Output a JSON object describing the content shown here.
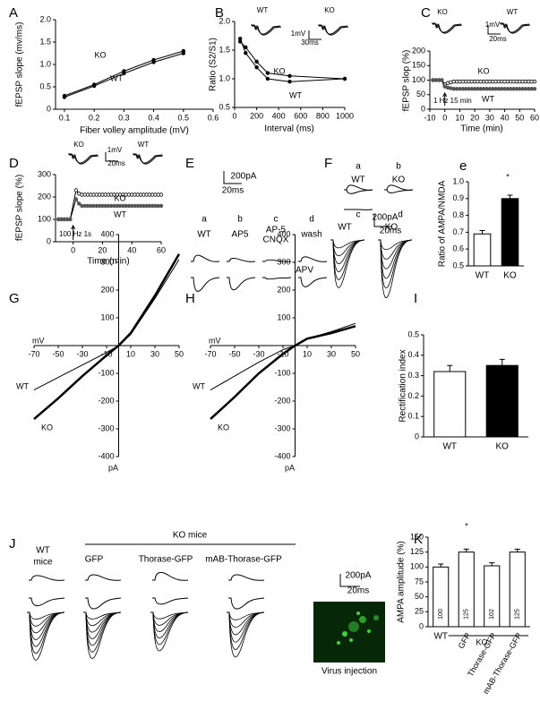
{
  "chart_data": [
    {
      "type": "line",
      "label": "A",
      "xlabel": "Fiber volley amplitude (mV)",
      "ylabel": "fEPSP slope (mv/ms)",
      "xlim": [
        0.07,
        0.6
      ],
      "xticks": [
        0.1,
        0.2,
        0.3,
        0.4,
        0.5,
        0.6
      ],
      "ylim": [
        0,
        2.0
      ],
      "yticks": [
        0,
        0.5,
        {
          "value": 1,
          "label": "1.0"
        },
        1.5,
        {
          "value": 2,
          "label": "2.0"
        }
      ],
      "x": [
        0.1,
        0.2,
        0.3,
        0.4,
        0.5
      ],
      "markers": true,
      "series": [
        {
          "name": "KO",
          "color": "#000000",
          "values": [
            0.3,
            0.55,
            0.85,
            1.1,
            1.3
          ]
        },
        {
          "name": "WT",
          "color": "#000000",
          "values": [
            0.27,
            0.52,
            0.8,
            1.05,
            1.25
          ]
        }
      ]
    },
    {
      "type": "line",
      "label": "B",
      "xlabel": "Interval (ms)",
      "ylabel": "Ratio (S2/S1)",
      "xlim": [
        0,
        1000
      ],
      "xticks": [
        0,
        200,
        400,
        600,
        800,
        1000
      ],
      "ylim": [
        0.5,
        2.0
      ],
      "yticks": [
        0.5,
        {
          "value": 1,
          "label": "1.0"
        },
        1.5,
        {
          "value": 2,
          "label": "2.0"
        }
      ],
      "x": [
        50,
        100,
        200,
        300,
        500,
        1000
      ],
      "markers": true,
      "series": [
        {
          "name": "KO",
          "color": "#000000",
          "values": [
            1.65,
            1.55,
            1.3,
            1.1,
            1.05,
            1.0
          ]
        },
        {
          "name": "WT",
          "color": "#000000",
          "values": [
            1.7,
            1.45,
            1.2,
            1.0,
            0.95,
            1.0
          ]
        }
      ],
      "annotations": [
        "WT",
        "KO",
        "1mV",
        "30ms"
      ]
    },
    {
      "type": "line",
      "label": "C",
      "xlabel": "Time (min)",
      "ylabel": "fEPSP slop (%)",
      "xlim": [
        -10,
        60
      ],
      "xticks": [
        -10,
        0,
        10,
        20,
        30,
        40,
        50,
        60
      ],
      "ylim": [
        0,
        200
      ],
      "yticks": [
        0,
        50,
        100,
        150,
        200
      ],
      "markers": true,
      "x": [
        -8,
        -6,
        -4,
        -2,
        0,
        2,
        4,
        6,
        8,
        10,
        12,
        14,
        16,
        18,
        20,
        22,
        24,
        26,
        28,
        30,
        32,
        34,
        36,
        38,
        40,
        42,
        44,
        46,
        48,
        50,
        52,
        54,
        56,
        58,
        60
      ],
      "series": [
        {
          "name": "KO",
          "color": "#000000",
          "marker": "open",
          "values": [
            100,
            100,
            100,
            100,
            85,
            90,
            93,
            95,
            95,
            95,
            95,
            95,
            95,
            95,
            95,
            95,
            95,
            95,
            95,
            95,
            95,
            95,
            95,
            95,
            95,
            95,
            95,
            95,
            95,
            95,
            95,
            95,
            95,
            95,
            95
          ]
        },
        {
          "name": "WT",
          "color": "#555555",
          "marker": "filled",
          "values": [
            100,
            100,
            100,
            100,
            78,
            74,
            72,
            70,
            70,
            70,
            70,
            70,
            70,
            70,
            70,
            70,
            70,
            70,
            70,
            70,
            70,
            70,
            70,
            70,
            70,
            70,
            70,
            70,
            70,
            70,
            70,
            70,
            70,
            70,
            70
          ]
        }
      ],
      "annotations": [
        "1 Hz 15 min",
        "KO",
        "WT",
        "1mV",
        "20ms"
      ]
    },
    {
      "type": "line",
      "label": "D",
      "xlabel": "Time (min)",
      "ylabel": "fEPSP slope (%)",
      "xlim": [
        -12,
        60
      ],
      "xticks": [
        0,
        20,
        40,
        60
      ],
      "ylim": [
        0,
        300
      ],
      "yticks": [
        0,
        100,
        200,
        300
      ],
      "markers": true,
      "x": [
        -10,
        -8,
        -6,
        -4,
        -2,
        2,
        4,
        6,
        8,
        10,
        12,
        14,
        16,
        18,
        20,
        22,
        24,
        26,
        28,
        30,
        32,
        34,
        36,
        38,
        40,
        42,
        44,
        46,
        48,
        50,
        52,
        54,
        56,
        58,
        60
      ],
      "series": [
        {
          "name": "KO",
          "color": "#000000",
          "marker": "open",
          "values": [
            100,
            100,
            100,
            100,
            100,
            230,
            215,
            210,
            210,
            210,
            210,
            210,
            210,
            210,
            210,
            210,
            210,
            210,
            210,
            210,
            210,
            210,
            210,
            210,
            210,
            210,
            210,
            210,
            210,
            210,
            210,
            210,
            210,
            210,
            210
          ]
        },
        {
          "name": "WT",
          "color": "#555555",
          "marker": "filled",
          "values": [
            100,
            100,
            100,
            100,
            100,
            190,
            170,
            160,
            160,
            160,
            160,
            160,
            160,
            160,
            160,
            160,
            160,
            160,
            160,
            160,
            160,
            160,
            160,
            160,
            160,
            160,
            160,
            160,
            160,
            160,
            160,
            160,
            160,
            160,
            160
          ]
        }
      ],
      "annotations": [
        "100 Hz 1s",
        "KO",
        "1mV",
        "20ms",
        "WT"
      ]
    },
    {
      "type": "traces",
      "label": "E",
      "labels": [
        "200pA",
        "20ms",
        "a",
        "b",
        "c",
        "d",
        "WT",
        "AP5",
        "AP-5",
        "CNQX",
        "wash"
      ]
    },
    {
      "type": "traces",
      "label": "F",
      "labels": [
        "a",
        "b",
        "WT",
        "KO",
        "c",
        "d",
        "200pA",
        "20ms",
        "WT",
        "KO"
      ]
    },
    {
      "type": "bar",
      "label": "e",
      "ylabel": "Ratio of AMPA/NMDA",
      "categories": [
        "WT",
        "KO"
      ],
      "values": [
        0.69,
        0.9
      ],
      "errors": [
        0.02,
        0.02
      ],
      "colors": [
        "#ffffff",
        "#000000"
      ],
      "ylim": [
        0.5,
        1.0
      ],
      "yticks": [
        0.5,
        0.6,
        0.7,
        0.8,
        0.9,
        {
          "value": 1,
          "label": "1.0"
        }
      ],
      "annotations": [
        "*"
      ]
    },
    {
      "type": "line",
      "label": "G",
      "xlabel": "mV",
      "ylabel": "pA",
      "axes_at_origin": true,
      "xlim": [
        -70,
        50
      ],
      "xticks": [
        -70,
        -50,
        -30,
        -10,
        10,
        30,
        50
      ],
      "ylim": [
        -400,
        400
      ],
      "yticks": [
        -400,
        -300,
        -200,
        -100,
        100,
        200,
        300,
        400
      ],
      "x": [
        -70,
        -50,
        -30,
        -10,
        0,
        10,
        30,
        50
      ],
      "series": [
        {
          "name": "WT",
          "color": "#000000",
          "line_width": 1,
          "values": [
            -160,
            -115,
            -70,
            -25,
            0,
            40,
            170,
            310
          ]
        },
        {
          "name": "KO",
          "color": "#000000",
          "line_width": 2.5,
          "values": [
            -265,
            -190,
            -110,
            -35,
            0,
            45,
            180,
            330
          ]
        }
      ]
    },
    {
      "type": "line",
      "label": "H",
      "title": "APV",
      "xlabel": "mV",
      "ylabel": "pA",
      "axes_at_origin": true,
      "xlim": [
        -70,
        50
      ],
      "xticks": [
        -70,
        -50,
        -30,
        -10,
        10,
        30,
        50
      ],
      "ylim": [
        -400,
        400
      ],
      "yticks": [
        -400,
        -300,
        -200,
        -100,
        100,
        200,
        300,
        400
      ],
      "x": [
        -70,
        -50,
        -30,
        -10,
        0,
        10,
        30,
        50
      ],
      "series": [
        {
          "name": "WT",
          "color": "#000000",
          "line_width": 1,
          "values": [
            -160,
            -110,
            -60,
            -15,
            0,
            25,
            50,
            80
          ]
        },
        {
          "name": "KO",
          "color": "#000000",
          "line_width": 2.5,
          "values": [
            -265,
            -185,
            -100,
            -30,
            0,
            25,
            45,
            70
          ]
        }
      ]
    },
    {
      "type": "bar",
      "label": "I",
      "ylabel": "Rectification index",
      "categories": [
        "WT",
        "KO"
      ],
      "values": [
        0.32,
        0.35
      ],
      "errors": [
        0.03,
        0.03
      ],
      "colors": [
        "#ffffff",
        "#000000"
      ],
      "ylim": [
        0,
        0.5
      ],
      "yticks": [
        0,
        0.1,
        0.2,
        0.3,
        0.4,
        0.5
      ]
    },
    {
      "type": "traces",
      "label": "J",
      "labels": [
        "WT",
        "mice",
        "KO mice",
        "GFP",
        "Thorase-GFP",
        "mAB-Thorase-GFP",
        "200pA",
        "20ms",
        "Virus injection"
      ]
    },
    {
      "type": "bar",
      "label": "K",
      "ylabel": "AMPA amplitude (%)",
      "categories": [
        "WT",
        "GFP",
        "Thorase-GFP",
        "mAB-Thorase-GFP"
      ],
      "values": [
        100,
        125,
        102,
        125
      ],
      "errors": [
        5,
        5,
        5,
        5
      ],
      "colors": [
        "#ffffff",
        "#ffffff",
        "#ffffff",
        "#ffffff"
      ],
      "value_labels_shown": true,
      "ylim": [
        0,
        150
      ],
      "yticks": [
        0,
        25,
        50,
        75,
        100,
        125,
        150
      ],
      "annotations": [
        "*",
        "KO"
      ]
    }
  ]
}
